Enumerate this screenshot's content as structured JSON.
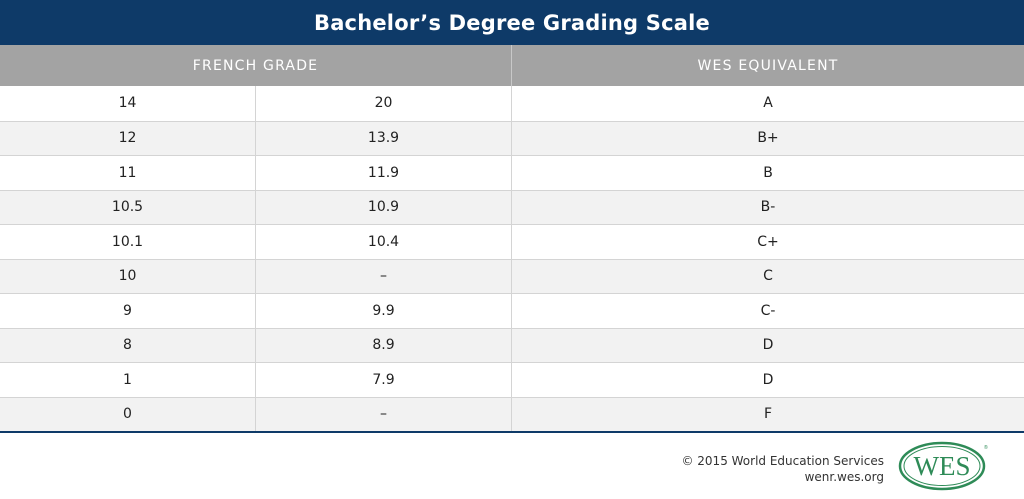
{
  "title": "Bachelor’s Degree Grading Scale",
  "headers": {
    "french_grade": "FRENCH GRADE",
    "wes_equivalent": "WES EQUIVALENT"
  },
  "rows": [
    {
      "min": "14",
      "max": "20",
      "wes": "A"
    },
    {
      "min": "12",
      "max": "13.9",
      "wes": "B+"
    },
    {
      "min": "11",
      "max": "11.9",
      "wes": "B"
    },
    {
      "min": "10.5",
      "max": "10.9",
      "wes": "B-"
    },
    {
      "min": "10.1",
      "max": "10.4",
      "wes": "C+"
    },
    {
      "min": "10",
      "max": "–",
      "wes": "C"
    },
    {
      "min": "9",
      "max": "9.9",
      "wes": "C-"
    },
    {
      "min": "8",
      "max": "8.9",
      "wes": "D"
    },
    {
      "min": "1",
      "max": "7.9",
      "wes": "D"
    },
    {
      "min": "0",
      "max": "–",
      "wes": "F"
    }
  ],
  "footer": {
    "copyright": "© 2015 World Education Services",
    "site": "wenr.wes.org",
    "logo_text": "WES",
    "logo_color": "#2e8b57"
  },
  "colors": {
    "title_bar": "#0e3a68",
    "header_bg": "#a3a3a3",
    "alt_row": "#f2f2f2"
  }
}
